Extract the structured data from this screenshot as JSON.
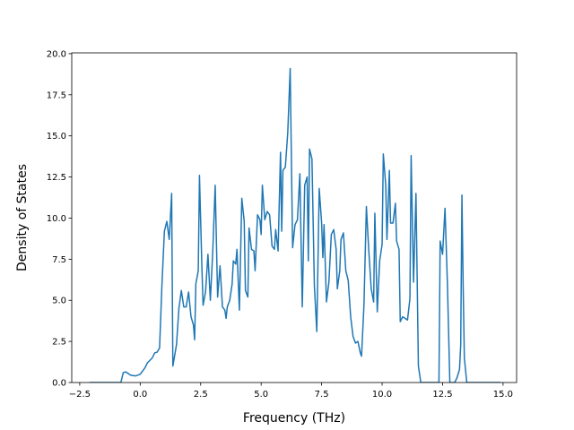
{
  "chart_data": {
    "type": "line",
    "x_label": "Frequency (THz)",
    "y_label": "Density of States",
    "color": "#1f77b4",
    "xlim": [
      -2.83,
      15.56
    ],
    "ylim": [
      0,
      20.05
    ],
    "xticks": [
      {
        "value": -2.5,
        "label": "−2.5"
      },
      {
        "value": 0,
        "label": "0.0"
      },
      {
        "value": 2.5,
        "label": "2.5"
      },
      {
        "value": 5,
        "label": "5.0"
      },
      {
        "value": 7.5,
        "label": "7.5"
      },
      {
        "value": 10,
        "label": "10.0"
      },
      {
        "value": 12.5,
        "label": "12.5"
      },
      {
        "value": 15,
        "label": "15.0"
      }
    ],
    "yticks": [
      {
        "value": 0,
        "label": "0.0"
      },
      {
        "value": 2.5,
        "label": "2.5"
      },
      {
        "value": 5,
        "label": "5.0"
      },
      {
        "value": 7.5,
        "label": "7.5"
      },
      {
        "value": 10,
        "label": "10.0"
      },
      {
        "value": 12.5,
        "label": "12.5"
      },
      {
        "value": 15,
        "label": "15.0"
      },
      {
        "value": 17.5,
        "label": "17.5"
      },
      {
        "value": 20,
        "label": "20.0"
      }
    ],
    "x": [
      -2.1,
      -0.8,
      -0.7,
      -0.6,
      -0.5,
      -0.4,
      -0.2,
      0.0,
      0.2,
      0.3,
      0.5,
      0.6,
      0.7,
      0.8,
      0.9,
      1.0,
      1.1,
      1.2,
      1.3,
      1.35,
      1.5,
      1.6,
      1.7,
      1.8,
      1.9,
      2.0,
      2.1,
      2.2,
      2.25,
      2.3,
      2.4,
      2.45,
      2.55,
      2.6,
      2.7,
      2.8,
      2.9,
      3.0,
      3.1,
      3.2,
      3.3,
      3.4,
      3.5,
      3.55,
      3.6,
      3.7,
      3.8,
      3.85,
      3.95,
      4.0,
      4.1,
      4.2,
      4.3,
      4.35,
      4.45,
      4.5,
      4.6,
      4.7,
      4.75,
      4.85,
      4.95,
      5.0,
      5.05,
      5.15,
      5.25,
      5.35,
      5.45,
      5.55,
      5.6,
      5.7,
      5.8,
      5.85,
      5.9,
      6.0,
      6.1,
      6.2,
      6.3,
      6.4,
      6.5,
      6.6,
      6.7,
      6.8,
      6.9,
      6.95,
      7.0,
      7.1,
      7.2,
      7.3,
      7.4,
      7.5,
      7.55,
      7.6,
      7.7,
      7.8,
      7.9,
      8.0,
      8.1,
      8.15,
      8.25,
      8.3,
      8.4,
      8.5,
      8.6,
      8.7,
      8.8,
      8.9,
      9.0,
      9.1,
      9.15,
      9.25,
      9.35,
      9.45,
      9.55,
      9.65,
      9.7,
      9.8,
      9.9,
      10.0,
      10.05,
      10.15,
      10.2,
      10.3,
      10.35,
      10.45,
      10.55,
      10.6,
      10.7,
      10.75,
      10.85,
      10.95,
      11.05,
      11.15,
      11.2,
      11.3,
      11.4,
      11.5,
      11.6,
      12.0,
      12.35,
      12.4,
      12.5,
      12.6,
      12.7,
      12.8,
      13.0,
      13.1,
      13.2,
      13.25,
      13.3,
      13.35,
      13.4,
      13.5,
      14.9
    ],
    "values": [
      0,
      0,
      0.6,
      0.65,
      0.55,
      0.45,
      0.4,
      0.5,
      0.9,
      1.2,
      1.5,
      1.8,
      1.85,
      2.1,
      6.0,
      9.2,
      9.8,
      8.7,
      11.5,
      1.0,
      2.3,
      4.5,
      5.6,
      4.6,
      4.6,
      5.5,
      4.0,
      3.5,
      2.6,
      6.0,
      6.8,
      12.6,
      7.0,
      4.7,
      5.5,
      7.8,
      5.0,
      8.0,
      12.0,
      5.2,
      7.1,
      4.6,
      4.4,
      3.9,
      4.6,
      5.0,
      6.0,
      7.4,
      7.2,
      8.1,
      4.4,
      11.2,
      9.8,
      5.6,
      5.2,
      9.4,
      8.1,
      8.0,
      6.8,
      10.2,
      9.9,
      9.0,
      12.0,
      9.9,
      10.4,
      10.2,
      8.3,
      8.1,
      9.3,
      8.0,
      14.0,
      9.2,
      12.9,
      13.1,
      15.2,
      19.1,
      8.2,
      9.6,
      9.9,
      12.7,
      4.6,
      12.0,
      12.5,
      7.4,
      14.2,
      13.6,
      5.9,
      3.1,
      11.8,
      9.7,
      7.6,
      9.6,
      4.9,
      6.1,
      9.0,
      9.3,
      8.1,
      5.7,
      6.8,
      8.7,
      9.1,
      6.8,
      6.2,
      4.0,
      2.8,
      2.4,
      2.5,
      1.8,
      1.6,
      4.7,
      10.7,
      8.0,
      5.7,
      4.9,
      10.3,
      4.3,
      7.4,
      8.4,
      13.9,
      12.0,
      8.7,
      12.9,
      9.7,
      9.7,
      10.9,
      8.6,
      8.1,
      3.7,
      4.0,
      3.9,
      3.8,
      5.1,
      13.8,
      6.1,
      11.5,
      1.0,
      0,
      0,
      0,
      8.6,
      7.8,
      10.6,
      6.0,
      0,
      0,
      0.3,
      0.8,
      2.3,
      11.4,
      6.0,
      1.5,
      0,
      0
    ]
  }
}
